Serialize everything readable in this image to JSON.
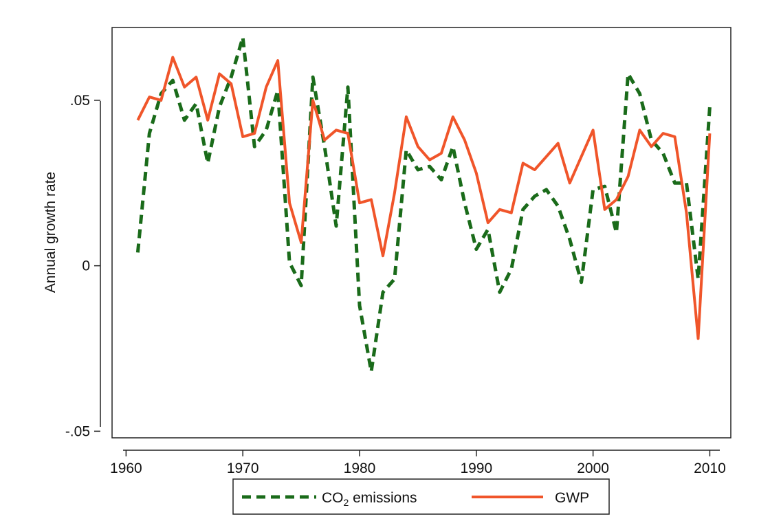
{
  "chart_data": {
    "type": "line",
    "title": "",
    "xlabel": "",
    "ylabel": "Annual growth rate",
    "xlim": [
      1958.8,
      2011.8
    ],
    "ylim": [
      -0.052,
      0.072
    ],
    "x_ticks": [
      1960,
      1970,
      1980,
      1990,
      2000,
      2010
    ],
    "x_tick_labels": [
      "1960",
      "1970",
      "1980",
      "1990",
      "2000",
      "2010"
    ],
    "y_ticks": [
      -0.05,
      0,
      0.05
    ],
    "y_tick_labels": [
      "-.05",
      "0",
      ".05"
    ],
    "grid": false,
    "legend_position": "bottom",
    "x": [
      1961,
      1962,
      1963,
      1964,
      1965,
      1966,
      1967,
      1968,
      1969,
      1970,
      1971,
      1972,
      1973,
      1974,
      1975,
      1976,
      1977,
      1978,
      1979,
      1980,
      1981,
      1982,
      1983,
      1984,
      1985,
      1986,
      1987,
      1988,
      1989,
      1990,
      1991,
      1992,
      1993,
      1994,
      1995,
      1996,
      1997,
      1998,
      1999,
      2000,
      2001,
      2002,
      2003,
      2004,
      2005,
      2006,
      2007,
      2008,
      2009,
      2010
    ],
    "series": [
      {
        "name": "CO₂ emissions",
        "color": "#1a6b1a",
        "dash": "dashed",
        "values": [
          0.004,
          0.04,
          0.052,
          0.056,
          0.044,
          0.049,
          0.031,
          0.048,
          0.057,
          0.069,
          0.036,
          0.041,
          0.053,
          0.001,
          -0.006,
          0.057,
          0.036,
          0.012,
          0.054,
          -0.012,
          -0.032,
          -0.008,
          -0.004,
          0.035,
          0.029,
          0.03,
          0.026,
          0.036,
          0.019,
          0.005,
          0.011,
          -0.008,
          -0.001,
          0.017,
          0.021,
          0.023,
          0.018,
          0.008,
          -0.005,
          0.023,
          0.024,
          0.01,
          0.058,
          0.052,
          0.038,
          0.034,
          0.025,
          0.025,
          -0.004,
          0.048
        ]
      },
      {
        "name": "GWP",
        "color": "#f0552a",
        "dash": "solid",
        "values": [
          0.044,
          0.051,
          0.05,
          0.063,
          0.054,
          0.057,
          0.044,
          0.058,
          0.055,
          0.039,
          0.04,
          0.054,
          0.062,
          0.019,
          0.007,
          0.05,
          0.038,
          0.041,
          0.04,
          0.019,
          0.02,
          0.003,
          0.022,
          0.045,
          0.036,
          0.032,
          0.034,
          0.045,
          0.038,
          0.028,
          0.013,
          0.017,
          0.016,
          0.031,
          0.029,
          0.033,
          0.037,
          0.025,
          0.033,
          0.041,
          0.017,
          0.02,
          0.027,
          0.041,
          0.036,
          0.04,
          0.039,
          0.016,
          -0.022,
          0.04
        ]
      }
    ]
  },
  "legend": {
    "co2_label": "CO",
    "co2_subscript": "2",
    "co2_suffix": " emissions",
    "gwp_label": "GWP"
  }
}
